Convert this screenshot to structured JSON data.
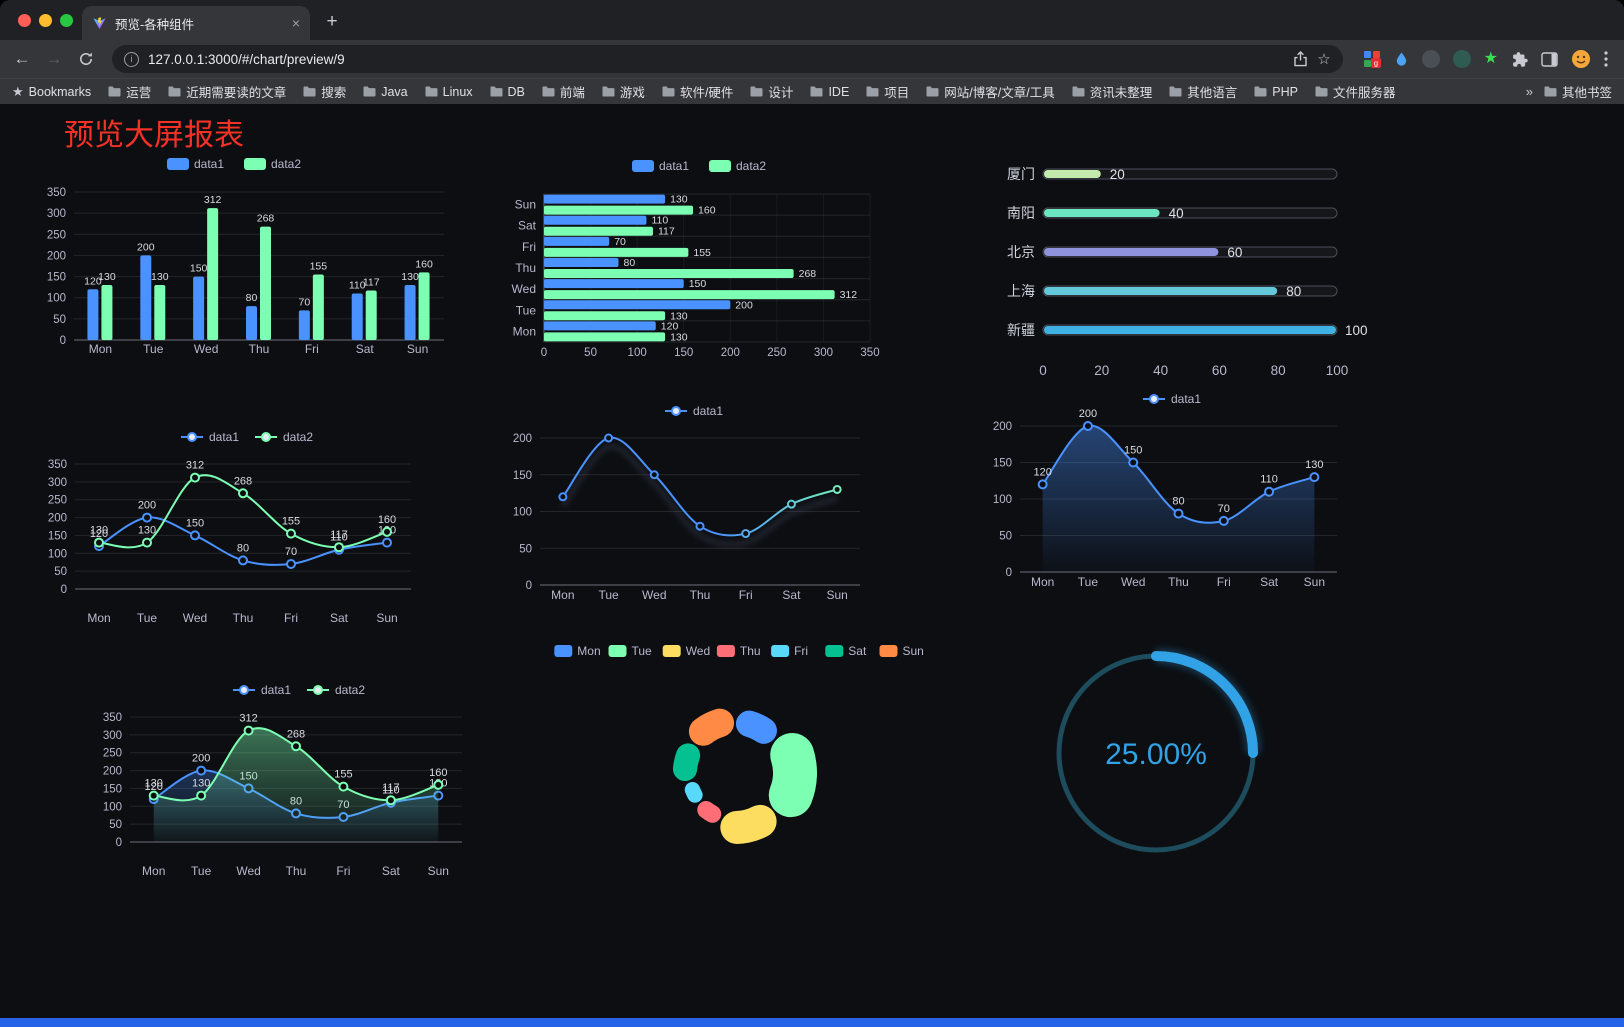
{
  "browser": {
    "tab_title": "预览-各种组件",
    "close_tab_glyph": "×",
    "new_tab_glyph": "+",
    "nav": {
      "back": "←",
      "forward": "→"
    },
    "url": "127.0.0.1:3000/#/chart/preview/9",
    "extension_badge": "g",
    "bookmarks": {
      "star_item_label": "Bookmarks",
      "folders": [
        "运营",
        "近期需要读的文章",
        "搜索",
        "Java",
        "Linux",
        "DB",
        "前端",
        "游戏",
        "软件/硬件",
        "设计",
        "IDE",
        "项目",
        "网站/博客/文章/工具",
        "资讯未整理",
        "其他语言",
        "PHP",
        "文件服务器"
      ],
      "overflow_chevron": "»",
      "other_bookmarks_label": "其他书签"
    }
  },
  "page": {
    "title": "预览大屏报表",
    "title_color": "#f53126",
    "background": "#0c0e12",
    "footer_color": "#2563e8"
  },
  "palette": {
    "blue": "#4992ff",
    "green": "#7cffb2",
    "yellow": "#fddd60",
    "red": "#ff6e76",
    "light_blue": "#58d9f9",
    "teal": "#05c091",
    "orange": "#ff8a45",
    "axis_text": "#B9B8CE"
  },
  "chart_data": [
    {
      "id": "bar-vertical",
      "type": "bar",
      "categories": [
        "Mon",
        "Tue",
        "Wed",
        "Thu",
        "Fri",
        "Sat",
        "Sun"
      ],
      "series": [
        {
          "name": "data1",
          "color": "#4992ff",
          "values": [
            120,
            200,
            150,
            80,
            70,
            110,
            130
          ]
        },
        {
          "name": "data2",
          "color": "#7cffb2",
          "values": [
            130,
            130,
            312,
            268,
            155,
            117,
            160
          ]
        }
      ],
      "ylim": [
        0,
        350
      ],
      "yticks": [
        0,
        50,
        100,
        150,
        200,
        250,
        300,
        350
      ],
      "legend_position": "top",
      "grid": true
    },
    {
      "id": "bar-horizontal",
      "type": "bar",
      "orientation": "horizontal",
      "categories": [
        "Mon",
        "Tue",
        "Wed",
        "Thu",
        "Fri",
        "Sat",
        "Sun"
      ],
      "series": [
        {
          "name": "data1",
          "color": "#4992ff",
          "values": [
            120,
            200,
            150,
            80,
            70,
            110,
            130
          ]
        },
        {
          "name": "data2",
          "color": "#7cffb2",
          "values": [
            130,
            130,
            312,
            268,
            155,
            117,
            160
          ]
        }
      ],
      "xlim": [
        0,
        350
      ],
      "xticks": [
        0,
        50,
        100,
        150,
        200,
        250,
        300,
        350
      ],
      "legend_position": "top",
      "category_order": "Mon at bottom, Sun at top"
    },
    {
      "id": "progress-list",
      "type": "bar",
      "orientation": "horizontal-progress",
      "rows": [
        {
          "label": "厦门",
          "value": 20,
          "color": "#c4ebad"
        },
        {
          "label": "南阳",
          "value": 40,
          "color": "#6be6c1"
        },
        {
          "label": "北京",
          "value": 60,
          "color": "#8f93de"
        },
        {
          "label": "上海",
          "value": 80,
          "color": "#63c8d9"
        },
        {
          "label": "新疆",
          "value": 100,
          "color": "#3fb1e3"
        }
      ],
      "max": 100,
      "xticks": [
        0,
        20,
        40,
        60,
        80,
        100
      ]
    },
    {
      "id": "line-two",
      "type": "line",
      "categories": [
        "Mon",
        "Tue",
        "Wed",
        "Thu",
        "Fri",
        "Sat",
        "Sun"
      ],
      "series": [
        {
          "name": "data1",
          "color": "#4992ff",
          "values": [
            120,
            200,
            150,
            80,
            70,
            110,
            130
          ]
        },
        {
          "name": "data2",
          "color": "#7cffb2",
          "values": [
            130,
            130,
            312,
            268,
            155,
            117,
            160
          ]
        }
      ],
      "ylim": [
        0,
        350
      ],
      "yticks": [
        0,
        50,
        100,
        150,
        200,
        250,
        300,
        350
      ],
      "point_labels": true,
      "legend_position": "top",
      "smooth": true
    },
    {
      "id": "line-gradient",
      "type": "line",
      "categories": [
        "Mon",
        "Tue",
        "Wed",
        "Thu",
        "Fri",
        "Sat",
        "Sun"
      ],
      "series": [
        {
          "name": "data1",
          "color_gradient": [
            "#4992ff",
            "#7cffb2"
          ],
          "values": [
            120,
            200,
            150,
            80,
            70,
            110,
            130
          ]
        }
      ],
      "ylim": [
        0,
        200
      ],
      "yticks": [
        0,
        50,
        100,
        150,
        200
      ],
      "point_labels": false,
      "legend_position": "top",
      "smooth": true
    },
    {
      "id": "area-single",
      "type": "area",
      "categories": [
        "Mon",
        "Tue",
        "Wed",
        "Thu",
        "Fri",
        "Sat",
        "Sun"
      ],
      "series": [
        {
          "name": "data1",
          "color": "#4992ff",
          "values": [
            120,
            200,
            150,
            80,
            70,
            110,
            130
          ]
        }
      ],
      "ylim": [
        0,
        200
      ],
      "yticks": [
        0,
        50,
        100,
        150,
        200
      ],
      "point_labels": true,
      "legend_position": "top",
      "smooth": true
    },
    {
      "id": "area-two",
      "type": "area",
      "categories": [
        "Mon",
        "Tue",
        "Wed",
        "Thu",
        "Fri",
        "Sat",
        "Sun"
      ],
      "series": [
        {
          "name": "data1",
          "color": "#4992ff",
          "values": [
            120,
            200,
            150,
            80,
            70,
            110,
            130
          ]
        },
        {
          "name": "data2",
          "color": "#7cffb2",
          "values": [
            130,
            130,
            312,
            268,
            155,
            117,
            160
          ]
        }
      ],
      "ylim": [
        0,
        350
      ],
      "yticks": [
        0,
        50,
        100,
        150,
        200,
        250,
        300,
        350
      ],
      "point_labels": true,
      "legend_position": "top",
      "smooth": true
    },
    {
      "id": "rose-donut",
      "type": "pie",
      "subtype": "rose-donut",
      "categories": [
        "Mon",
        "Tue",
        "Wed",
        "Thu",
        "Fri",
        "Sat",
        "Sun"
      ],
      "values": [
        120,
        200,
        150,
        80,
        70,
        110,
        130
      ],
      "colors": [
        "#4992ff",
        "#7cffb2",
        "#fddd60",
        "#ff6e76",
        "#58d9f9",
        "#05c091",
        "#ff8a45"
      ],
      "legend_position": "top"
    },
    {
      "id": "gauge",
      "type": "gauge",
      "value": 25,
      "display": "25.00%",
      "color": "#31a2e6",
      "track_color": "#1d4c5c"
    }
  ]
}
